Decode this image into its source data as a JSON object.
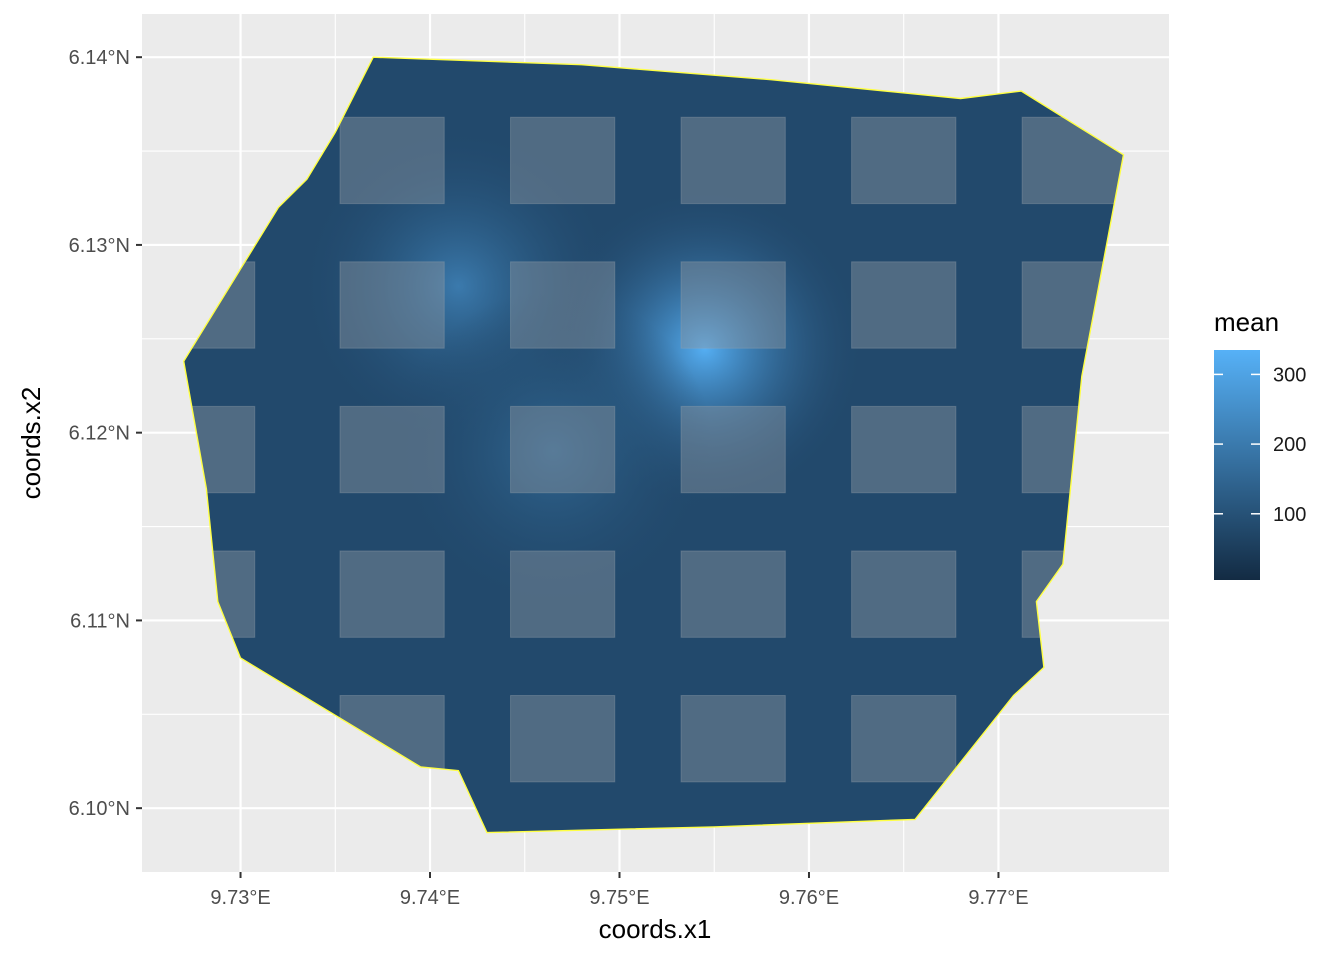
{
  "chart_data": {
    "type": "heatmap",
    "xlabel": "coords.x1",
    "ylabel": "coords.x2",
    "xlim": [
      9.7248,
      9.779
    ],
    "ylim": [
      6.0966,
      6.1423
    ],
    "x_ticks": [
      {
        "value": 9.73,
        "label": "9.73°E"
      },
      {
        "value": 9.74,
        "label": "9.74°E"
      },
      {
        "value": 9.75,
        "label": "9.75°E"
      },
      {
        "value": 9.76,
        "label": "9.76°E"
      },
      {
        "value": 9.77,
        "label": "9.77°E"
      }
    ],
    "y_ticks": [
      {
        "value": 6.1,
        "label": "6.10°N"
      },
      {
        "value": 6.11,
        "label": "6.11°N"
      },
      {
        "value": 6.12,
        "label": "6.12°N"
      },
      {
        "value": 6.13,
        "label": "6.13°N"
      },
      {
        "value": 6.14,
        "label": "6.14°N"
      }
    ],
    "grid": true,
    "legend": {
      "title": "mean",
      "position": "right",
      "range": [
        5,
        335
      ],
      "ticks": [
        100,
        200,
        300
      ],
      "colors": [
        "#132B43",
        "#56B1F7"
      ]
    },
    "boundary": [
      [
        9.737,
        6.14
      ],
      [
        9.748,
        6.1396
      ],
      [
        9.758,
        6.1388
      ],
      [
        9.768,
        6.1378
      ],
      [
        9.7712,
        6.1382
      ],
      [
        9.7766,
        6.1348
      ],
      [
        9.7744,
        6.123
      ],
      [
        9.7734,
        6.113
      ],
      [
        9.772,
        6.111
      ],
      [
        9.7724,
        6.1075
      ],
      [
        9.7708,
        6.106
      ],
      [
        9.7656,
        6.0994
      ],
      [
        9.755,
        6.099
      ],
      [
        9.743,
        6.0987
      ],
      [
        9.7415,
        6.102
      ],
      [
        9.7395,
        6.1022
      ],
      [
        9.73,
        6.108
      ],
      [
        9.7288,
        6.111
      ],
      [
        9.7282,
        6.117
      ],
      [
        9.727,
        6.1238
      ],
      [
        9.732,
        6.132
      ],
      [
        9.7335,
        6.1335
      ],
      [
        9.735,
        6.136
      ],
      [
        9.737,
        6.14
      ]
    ],
    "boundary_color": "#ffff44",
    "base_value": 80,
    "hotspots": [
      {
        "x": 9.7545,
        "y": 6.1245,
        "peak": 330
      },
      {
        "x": 9.7415,
        "y": 6.1278,
        "peak": 200
      },
      {
        "x": 9.7465,
        "y": 6.119,
        "peak": 150
      }
    ],
    "overlay_columns_x": [
      9.728,
      9.738,
      9.747,
      9.756,
      9.765,
      9.774
    ],
    "overlay_rows_y": [
      6.1345,
      6.1268,
      6.1191,
      6.1114,
      6.1037
    ],
    "overlay_cell_width": 0.0055,
    "overlay_cell_height": 0.0046,
    "overlay_color": "#8a959f"
  }
}
